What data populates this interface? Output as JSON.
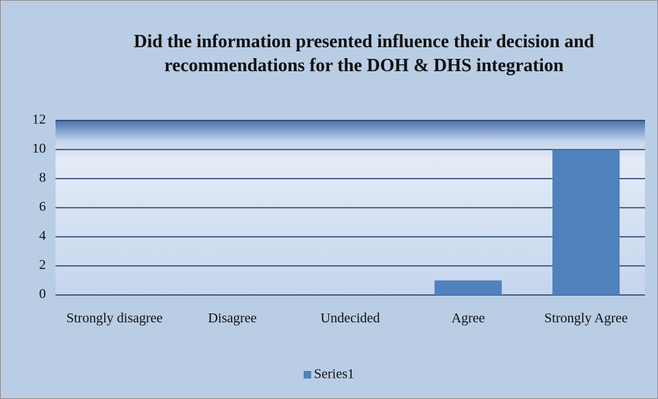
{
  "chart_data": {
    "type": "bar",
    "title": "Did the information presented influence their decision and recommendations  for the DOH & DHS integration",
    "categories": [
      "Strongly disagree",
      "Disagree",
      "Undecided",
      "Agree",
      "Strongly Agree"
    ],
    "series": [
      {
        "name": "Series1",
        "color": "#4f81bd",
        "values": [
          0,
          0,
          0,
          1,
          10
        ]
      }
    ],
    "ylim": [
      0,
      12
    ],
    "yticks": [
      0,
      2,
      4,
      6,
      8,
      10,
      12
    ],
    "grid": true,
    "legend": "bottom"
  }
}
